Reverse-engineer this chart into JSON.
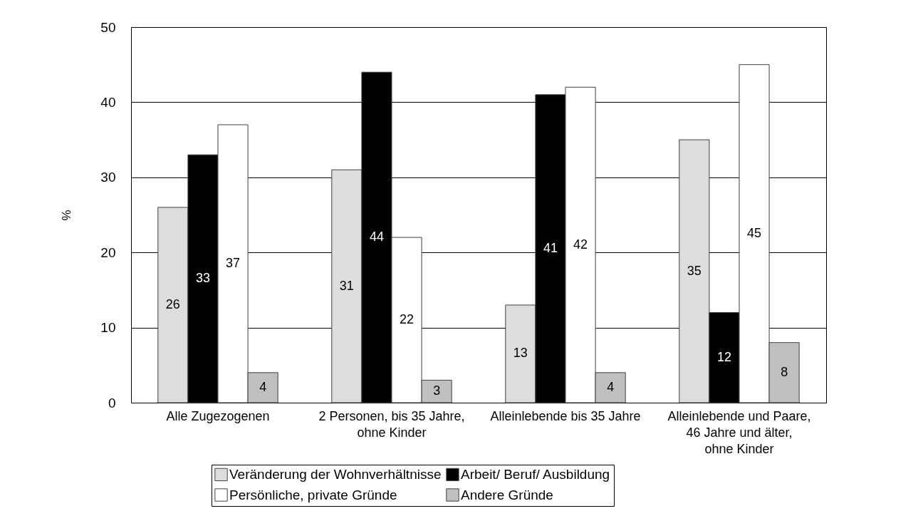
{
  "chart_data": {
    "type": "bar",
    "ylabel": "%",
    "categories": [
      "Alle Zugezogenen",
      "2 Personen, bis 35 Jahre, ohne Kinder",
      "Alleinlebende bis 35 Jahre",
      "Alleinlebende und Paare, 46 Jahre und älter, ohne Kinder"
    ],
    "series": [
      {
        "name": "Veränderung der Wohnverhältnisse",
        "color": "#dddddd",
        "values": [
          26,
          31,
          13,
          35
        ]
      },
      {
        "name": "Arbeit/ Beruf/ Ausbildung",
        "color": "#000000",
        "values": [
          33,
          44,
          41,
          12
        ]
      },
      {
        "name": "Persönliche, private Gründe",
        "color": "#ffffff",
        "values": [
          37,
          22,
          42,
          45
        ]
      },
      {
        "name": "Andere Gründe",
        "color": "#c0c0c0",
        "values": [
          4,
          3,
          4,
          8
        ]
      }
    ],
    "ylim": [
      0,
      50
    ],
    "yticks": [
      0,
      10,
      20,
      30,
      40,
      50
    ],
    "grid": "y",
    "legend": "bottom",
    "data_labels": true
  }
}
